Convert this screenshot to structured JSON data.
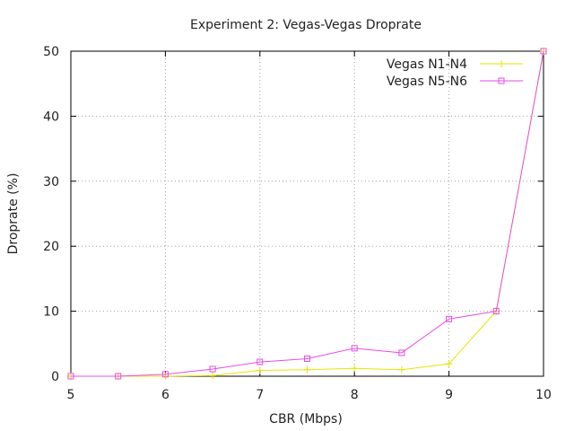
{
  "chart_data": {
    "type": "line",
    "title": "Experiment 2: Vegas-Vegas Droprate",
    "xlabel": "CBR (Mbps)",
    "ylabel": "Droprate (%)",
    "xlim": [
      5,
      10
    ],
    "ylim": [
      0,
      50
    ],
    "x_ticks": [
      "5",
      "6",
      "7",
      "8",
      "9",
      "10"
    ],
    "y_ticks": [
      "0",
      "10",
      "20",
      "30",
      "40",
      "50"
    ],
    "grid": true,
    "legend_position": "top-right",
    "series": [
      {
        "name": "Vegas N1-N4",
        "color": "#e6e600",
        "marker": "plus",
        "x": [
          5,
          5.5,
          6,
          6.5,
          7,
          7.5,
          8,
          8.5,
          9,
          9.5,
          10
        ],
        "y": [
          0,
          0,
          0,
          0.1,
          0.9,
          1.0,
          1.2,
          1.0,
          1.9,
          10.0,
          50.0
        ]
      },
      {
        "name": "Vegas N5-N6",
        "color": "#e64ce6",
        "marker": "square",
        "x": [
          5,
          5.5,
          6,
          6.5,
          7,
          7.5,
          8,
          8.5,
          9,
          9.5,
          10
        ],
        "y": [
          0,
          0,
          0.3,
          1.1,
          2.2,
          2.7,
          4.3,
          3.6,
          8.8,
          10.0,
          50.0
        ]
      }
    ]
  }
}
